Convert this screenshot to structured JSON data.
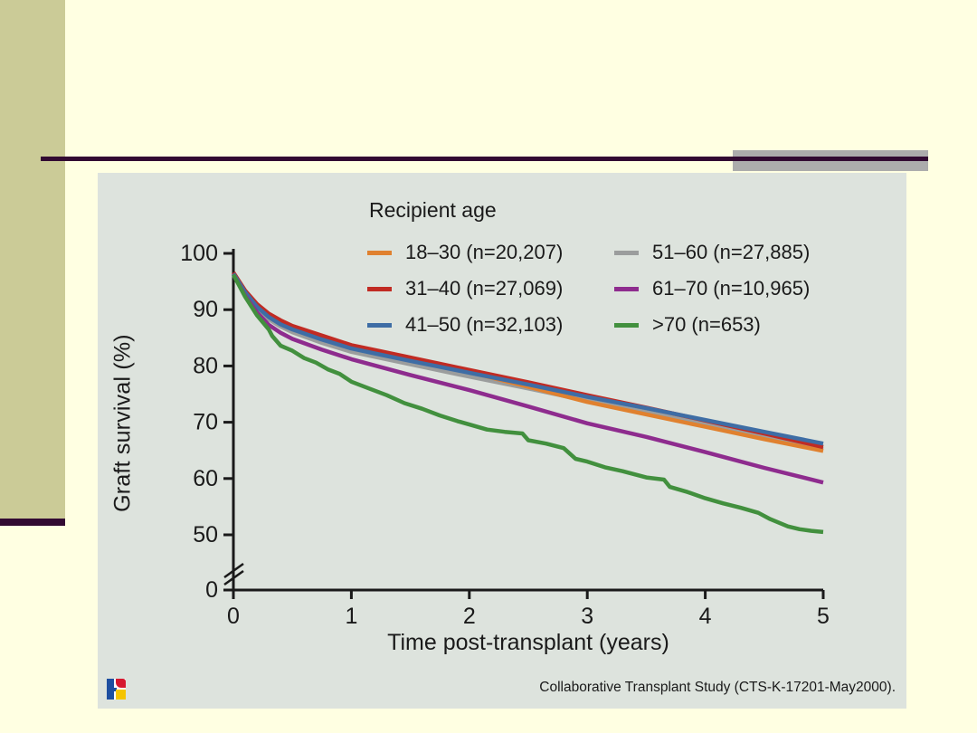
{
  "slide": {
    "background_color": "#ffffe2",
    "sidebar_color": "#cbcb97",
    "accent_line_color": "#320a32",
    "accent_bar_color": "#acacac",
    "panel_color": "#dde3dd"
  },
  "footer": {
    "source": "Collaborative Transplant Study (CTS-K-17201-May2000).",
    "logo": "cts-logo"
  },
  "chart_data": {
    "type": "line",
    "subtype": "kaplan-meier-survival",
    "legend_title": "Recipient age",
    "xlabel": "Time post-transplant (years)",
    "ylabel": "Graft survival (%)",
    "x_ticks": [
      0,
      1,
      2,
      3,
      4,
      5
    ],
    "y_ticks": [
      50,
      60,
      70,
      80,
      90,
      100
    ],
    "y_zero_label": "0",
    "y_axis_break": true,
    "xlim": [
      0,
      5
    ],
    "ylim": [
      50,
      100
    ],
    "grid": false,
    "legend_position": "top-inside-two-columns",
    "series": [
      {
        "label": "18–30 (n=20,207)",
        "color": "#e0812f",
        "points": [
          [
            0,
            96.5
          ],
          [
            0.1,
            93.2
          ],
          [
            0.2,
            90.7
          ],
          [
            0.3,
            89.0
          ],
          [
            0.4,
            87.8
          ],
          [
            0.5,
            86.8
          ],
          [
            0.75,
            85.0
          ],
          [
            1,
            83.3
          ],
          [
            1.25,
            82.2
          ],
          [
            1.5,
            81.1
          ],
          [
            2,
            78.9
          ],
          [
            2.5,
            76.3
          ],
          [
            3,
            73.6
          ],
          [
            3.5,
            71.4
          ],
          [
            4,
            69.2
          ],
          [
            4.5,
            67.0
          ],
          [
            5,
            64.9
          ]
        ]
      },
      {
        "label": "31–40 (n=27,069)",
        "color": "#c12b23",
        "points": [
          [
            0,
            96.6
          ],
          [
            0.1,
            93.4
          ],
          [
            0.2,
            91.0
          ],
          [
            0.3,
            89.3
          ],
          [
            0.4,
            88.1
          ],
          [
            0.5,
            87.1
          ],
          [
            0.75,
            85.4
          ],
          [
            1,
            83.7
          ],
          [
            1.25,
            82.6
          ],
          [
            1.5,
            81.5
          ],
          [
            2,
            79.3
          ],
          [
            2.5,
            77.1
          ],
          [
            3,
            74.8
          ],
          [
            3.5,
            72.6
          ],
          [
            4,
            70.3
          ],
          [
            4.5,
            68.0
          ],
          [
            5,
            65.6
          ]
        ]
      },
      {
        "label": "41–50 (n=32,103)",
        "color": "#3e6da5",
        "points": [
          [
            0,
            96.4
          ],
          [
            0.1,
            93.1
          ],
          [
            0.2,
            90.5
          ],
          [
            0.3,
            88.7
          ],
          [
            0.4,
            87.4
          ],
          [
            0.5,
            86.5
          ],
          [
            0.75,
            84.7
          ],
          [
            1,
            83.1
          ],
          [
            1.25,
            82.0
          ],
          [
            1.5,
            80.9
          ],
          [
            2,
            78.8
          ],
          [
            2.5,
            76.7
          ],
          [
            3,
            74.5
          ],
          [
            3.5,
            72.5
          ],
          [
            4,
            70.4
          ],
          [
            4.5,
            68.3
          ],
          [
            5,
            66.2
          ]
        ]
      },
      {
        "label": "51–60 (n=27,885)",
        "color": "#9b9d9d",
        "points": [
          [
            0,
            96.3
          ],
          [
            0.1,
            92.9
          ],
          [
            0.2,
            90.2
          ],
          [
            0.3,
            88.3
          ],
          [
            0.4,
            87.0
          ],
          [
            0.5,
            86.0
          ],
          [
            0.75,
            84.1
          ],
          [
            1,
            82.5
          ],
          [
            1.25,
            81.4
          ],
          [
            1.5,
            80.3
          ],
          [
            2,
            78.1
          ],
          [
            2.5,
            76.0
          ],
          [
            3,
            73.8
          ],
          [
            3.5,
            71.8
          ],
          [
            4,
            69.7
          ],
          [
            4.5,
            67.5
          ],
          [
            5,
            65.2
          ]
        ]
      },
      {
        "label": "61–70 (n=10,965)",
        "color": "#8e2c8e",
        "points": [
          [
            0,
            96.2
          ],
          [
            0.1,
            92.5
          ],
          [
            0.2,
            89.5
          ],
          [
            0.3,
            87.3
          ],
          [
            0.4,
            85.9
          ],
          [
            0.5,
            84.8
          ],
          [
            0.75,
            82.9
          ],
          [
            1,
            81.2
          ],
          [
            1.5,
            78.4
          ],
          [
            2,
            75.7
          ],
          [
            2.5,
            72.8
          ],
          [
            3,
            69.8
          ],
          [
            3.5,
            67.4
          ],
          [
            4,
            64.7
          ],
          [
            4.5,
            61.9
          ],
          [
            5,
            59.3
          ]
        ]
      },
      {
        "label": ">70 (n=653)",
        "color": "#42903e",
        "points": [
          [
            0,
            96.2
          ],
          [
            0.1,
            92.3
          ],
          [
            0.2,
            89.0
          ],
          [
            0.3,
            86.5
          ],
          [
            0.33,
            85.3
          ],
          [
            0.4,
            83.6
          ],
          [
            0.5,
            82.7
          ],
          [
            0.6,
            81.4
          ],
          [
            0.7,
            80.6
          ],
          [
            0.8,
            79.4
          ],
          [
            0.9,
            78.6
          ],
          [
            1,
            77.2
          ],
          [
            1.15,
            76.0
          ],
          [
            1.3,
            74.8
          ],
          [
            1.45,
            73.4
          ],
          [
            1.6,
            72.4
          ],
          [
            1.75,
            71.2
          ],
          [
            1.9,
            70.2
          ],
          [
            2,
            69.6
          ],
          [
            2.15,
            68.7
          ],
          [
            2.3,
            68.3
          ],
          [
            2.45,
            68.0
          ],
          [
            2.5,
            66.8
          ],
          [
            2.65,
            66.2
          ],
          [
            2.8,
            65.4
          ],
          [
            2.9,
            63.5
          ],
          [
            3,
            63.0
          ],
          [
            3.15,
            62.0
          ],
          [
            3.3,
            61.3
          ],
          [
            3.5,
            60.2
          ],
          [
            3.65,
            59.8
          ],
          [
            3.7,
            58.5
          ],
          [
            3.85,
            57.6
          ],
          [
            4,
            56.5
          ],
          [
            4.15,
            55.6
          ],
          [
            4.3,
            54.8
          ],
          [
            4.45,
            53.9
          ],
          [
            4.55,
            52.8
          ],
          [
            4.7,
            51.5
          ],
          [
            4.8,
            51.0
          ],
          [
            4.9,
            50.7
          ],
          [
            5,
            50.5
          ]
        ]
      }
    ]
  }
}
